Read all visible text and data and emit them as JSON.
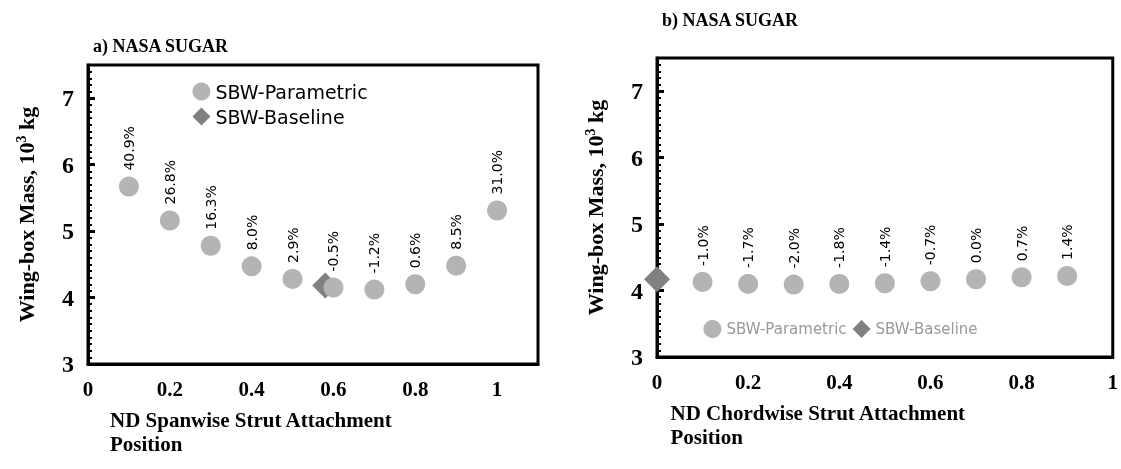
{
  "chart_data": [
    {
      "type": "scatter",
      "title": "a) NASA SUGAR",
      "xlabel": "ND Spanwise Strut Attachment Position",
      "ylabel": "Wing-box Mass, 10$^{3}$ kg",
      "xlim": [
        0,
        1.1
      ],
      "xticks": [
        0,
        0.2,
        0.4,
        0.6,
        0.8,
        1
      ],
      "ylim": [
        3,
        7.5
      ],
      "yticks": [
        3,
        4,
        5,
        6,
        7
      ],
      "legend": "top",
      "grid": false,
      "series": [
        {
          "name": "SBW-Parametric",
          "color": "#b4b4b4",
          "marker": "circle",
          "x": [
            0.1,
            0.2,
            0.3,
            0.4,
            0.5,
            0.6,
            0.7,
            0.8,
            0.9,
            1.0
          ],
          "values": [
            5.67,
            5.16,
            4.78,
            4.47,
            4.28,
            4.15,
            4.12,
            4.2,
            4.48,
            5.31
          ]
        },
        {
          "name": "SBW-Baseline",
          "color": "#808080",
          "marker": "diamond",
          "x": [
            0.58
          ],
          "values": [
            4.18
          ]
        }
      ],
      "annotations": [
        {
          "text": "40.9%",
          "x": 0.1,
          "y": 5.67
        },
        {
          "text": "26.8%",
          "x": 0.2,
          "y": 5.16
        },
        {
          "text": "16.3%",
          "x": 0.3,
          "y": 4.78
        },
        {
          "text": "8.0%",
          "x": 0.4,
          "y": 4.47
        },
        {
          "text": "2.9%",
          "x": 0.5,
          "y": 4.28
        },
        {
          "text": "-0.5%",
          "x": 0.6,
          "y": 4.15
        },
        {
          "text": "-1.2%",
          "x": 0.7,
          "y": 4.12
        },
        {
          "text": "0.6%",
          "x": 0.8,
          "y": 4.2
        },
        {
          "text": "8.5%",
          "x": 0.9,
          "y": 4.48
        },
        {
          "text": "31.0%",
          "x": 1.0,
          "y": 5.31
        }
      ]
    },
    {
      "type": "scatter",
      "title": "b) NASA SUGAR",
      "xlabel": "ND Chordwise Strut Attachment Position",
      "ylabel": "Wing-box Mass, 10$^{3}$ kg",
      "xlim": [
        0,
        1
      ],
      "xticks": [
        0,
        0.2,
        0.4,
        0.6,
        0.8,
        1
      ],
      "ylim": [
        3,
        7.5
      ],
      "yticks": [
        3,
        4,
        5,
        6,
        7
      ],
      "legend": "bottom",
      "grid": false,
      "series": [
        {
          "name": "SBW-Parametric",
          "color": "#b4b4b4",
          "marker": "circle",
          "x": [
            0.1,
            0.2,
            0.3,
            0.4,
            0.5,
            0.6,
            0.7,
            0.8,
            0.9
          ],
          "values": [
            4.13,
            4.1,
            4.09,
            4.1,
            4.11,
            4.14,
            4.17,
            4.2,
            4.22
          ]
        },
        {
          "name": "SBW-Baseline",
          "color": "#808080",
          "marker": "diamond",
          "x": [
            0
          ],
          "values": [
            4.17
          ]
        }
      ],
      "annotations": [
        {
          "text": "-1.0%",
          "x": 0.1,
          "y": 4.13
        },
        {
          "text": "-1.7%",
          "x": 0.2,
          "y": 4.1
        },
        {
          "text": "-2.0%",
          "x": 0.3,
          "y": 4.09
        },
        {
          "text": "-1.8%",
          "x": 0.4,
          "y": 4.1
        },
        {
          "text": "-1.4%",
          "x": 0.5,
          "y": 4.11
        },
        {
          "text": "-0.7%",
          "x": 0.6,
          "y": 4.14
        },
        {
          "text": "0.0%",
          "x": 0.7,
          "y": 4.17
        },
        {
          "text": "0.7%",
          "x": 0.8,
          "y": 4.2
        },
        {
          "text": "1.4%",
          "x": 0.9,
          "y": 4.22
        }
      ]
    }
  ]
}
